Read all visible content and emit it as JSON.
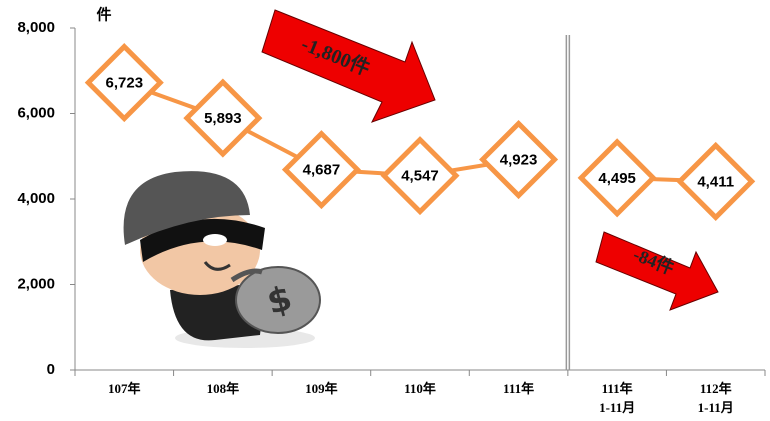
{
  "chart_data": {
    "type": "line",
    "y_axis_label": "件",
    "categories": [
      "107年",
      "108年",
      "109年",
      "110年",
      "111年",
      "111年\n1-11月",
      "112年\n1-11月"
    ],
    "values": [
      6723,
      5893,
      4687,
      4547,
      4923,
      4495,
      4411
    ],
    "value_labels": [
      "6,723",
      "5,893",
      "4,687",
      "4,547",
      "4,923",
      "4,495",
      "4,411"
    ],
    "color": "#f79646",
    "divider_after_index": 4,
    "ylim": [
      0,
      8000
    ],
    "yticks": [
      0,
      {
        "value": 2000,
        "label": "2,000"
      },
      {
        "value": 4000,
        "label": "4,000"
      },
      {
        "value": 6000,
        "label": "6,000"
      },
      {
        "value": 8000,
        "label": "8,000"
      }
    ],
    "annotations": [
      "-1,800件",
      "-84件"
    ]
  }
}
